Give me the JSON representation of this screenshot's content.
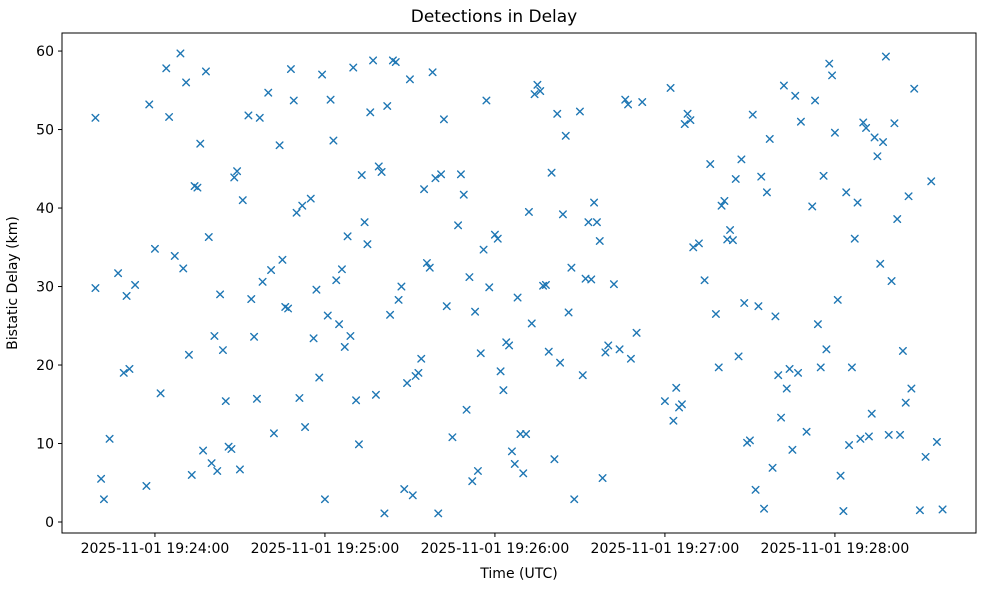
{
  "chart_data": {
    "type": "scatter",
    "title": "Detections in Delay",
    "xlabel": "Time (UTC)",
    "ylabel": "Bistatic Delay (km)",
    "marker": "x",
    "marker_color": "#1f77b4",
    "grid": false,
    "legend": "none",
    "x_unit": "seconds relative to 2025-11-01 19:24:00 UTC",
    "xlim_seconds": [
      -32.8,
      289.8
    ],
    "ylim": [
      -1.4,
      62.3
    ],
    "xticks": [
      {
        "t": 0,
        "label": "2025-11-01 19:24:00"
      },
      {
        "t": 60,
        "label": "2025-11-01 19:25:00"
      },
      {
        "t": 120,
        "label": "2025-11-01 19:26:00"
      },
      {
        "t": 180,
        "label": "2025-11-01 19:27:00"
      },
      {
        "t": 240,
        "label": "2025-11-01 19:28:00"
      }
    ],
    "yticks": [
      0,
      10,
      20,
      30,
      40,
      50,
      60
    ],
    "points": [
      [
        -21,
        51.5
      ],
      [
        -21,
        29.8
      ],
      [
        -19,
        5.5
      ],
      [
        -18,
        2.9
      ],
      [
        -16,
        10.6
      ],
      [
        -13,
        31.7
      ],
      [
        -11,
        19.0
      ],
      [
        -10,
        28.8
      ],
      [
        -9,
        19.5
      ],
      [
        -7,
        30.2
      ],
      [
        -3,
        4.6
      ],
      [
        -2,
        53.2
      ],
      [
        0,
        34.8
      ],
      [
        2,
        16.4
      ],
      [
        4,
        57.8
      ],
      [
        5,
        51.6
      ],
      [
        7,
        33.9
      ],
      [
        9,
        59.7
      ],
      [
        10,
        32.3
      ],
      [
        11,
        56.0
      ],
      [
        12,
        21.3
      ],
      [
        13,
        6.0
      ],
      [
        14,
        42.8
      ],
      [
        15,
        42.6
      ],
      [
        16,
        48.2
      ],
      [
        17,
        9.1
      ],
      [
        18,
        57.4
      ],
      [
        19,
        36.3
      ],
      [
        20,
        7.5
      ],
      [
        21,
        23.7
      ],
      [
        22,
        6.5
      ],
      [
        23,
        29.0
      ],
      [
        24,
        21.9
      ],
      [
        25,
        15.4
      ],
      [
        26,
        9.6
      ],
      [
        27,
        9.3
      ],
      [
        28,
        43.9
      ],
      [
        29,
        44.7
      ],
      [
        30,
        6.7
      ],
      [
        31,
        41.0
      ],
      [
        33,
        51.8
      ],
      [
        34,
        28.4
      ],
      [
        35,
        23.6
      ],
      [
        36,
        15.7
      ],
      [
        37,
        51.5
      ],
      [
        38,
        30.6
      ],
      [
        40,
        54.7
      ],
      [
        41,
        32.1
      ],
      [
        42,
        11.3
      ],
      [
        44,
        48.0
      ],
      [
        45,
        33.4
      ],
      [
        46,
        27.4
      ],
      [
        47,
        27.2
      ],
      [
        48,
        57.7
      ],
      [
        49,
        53.7
      ],
      [
        50,
        39.4
      ],
      [
        51,
        15.8
      ],
      [
        52,
        40.3
      ],
      [
        53,
        12.1
      ],
      [
        55,
        41.2
      ],
      [
        56,
        23.4
      ],
      [
        57,
        29.6
      ],
      [
        58,
        18.4
      ],
      [
        59,
        57.0
      ],
      [
        60,
        2.9
      ],
      [
        61,
        26.3
      ],
      [
        62,
        53.8
      ],
      [
        63,
        48.6
      ],
      [
        64,
        30.8
      ],
      [
        65,
        25.2
      ],
      [
        66,
        32.2
      ],
      [
        67,
        22.3
      ],
      [
        68,
        36.4
      ],
      [
        69,
        23.7
      ],
      [
        70,
        57.9
      ],
      [
        71,
        15.5
      ],
      [
        72,
        9.9
      ],
      [
        73,
        44.2
      ],
      [
        74,
        38.2
      ],
      [
        75,
        35.4
      ],
      [
        76,
        52.2
      ],
      [
        77,
        58.8
      ],
      [
        78,
        16.2
      ],
      [
        79,
        45.3
      ],
      [
        80,
        44.6
      ],
      [
        81,
        1.1
      ],
      [
        82,
        53.0
      ],
      [
        83,
        26.4
      ],
      [
        84,
        58.8
      ],
      [
        85,
        58.6
      ],
      [
        86,
        28.3
      ],
      [
        87,
        30.0
      ],
      [
        88,
        4.2
      ],
      [
        89,
        17.7
      ],
      [
        90,
        56.4
      ],
      [
        91,
        3.4
      ],
      [
        92,
        18.6
      ],
      [
        93,
        19.0
      ],
      [
        94,
        20.8
      ],
      [
        95,
        42.4
      ],
      [
        96,
        33.0
      ],
      [
        97,
        32.4
      ],
      [
        98,
        57.3
      ],
      [
        99,
        43.8
      ],
      [
        100,
        1.1
      ],
      [
        101,
        44.3
      ],
      [
        102,
        51.3
      ],
      [
        103,
        27.5
      ],
      [
        105,
        10.8
      ],
      [
        107,
        37.8
      ],
      [
        108,
        44.3
      ],
      [
        109,
        41.7
      ],
      [
        110,
        14.3
      ],
      [
        111,
        31.2
      ],
      [
        112,
        5.2
      ],
      [
        113,
        26.8
      ],
      [
        114,
        6.5
      ],
      [
        115,
        21.5
      ],
      [
        116,
        34.7
      ],
      [
        117,
        53.7
      ],
      [
        118,
        29.9
      ],
      [
        120,
        36.6
      ],
      [
        121,
        36.1
      ],
      [
        122,
        19.2
      ],
      [
        123,
        16.8
      ],
      [
        124,
        22.9
      ],
      [
        125,
        22.5
      ],
      [
        126,
        9.0
      ],
      [
        127,
        7.4
      ],
      [
        128,
        28.6
      ],
      [
        129,
        11.2
      ],
      [
        130,
        6.2
      ],
      [
        131,
        11.2
      ],
      [
        132,
        39.5
      ],
      [
        133,
        25.3
      ],
      [
        134,
        54.5
      ],
      [
        135,
        55.7
      ],
      [
        136,
        54.9
      ],
      [
        137,
        30.1
      ],
      [
        138,
        30.2
      ],
      [
        139,
        21.7
      ],
      [
        140,
        44.5
      ],
      [
        141,
        8.0
      ],
      [
        142,
        52.0
      ],
      [
        143,
        20.3
      ],
      [
        144,
        39.2
      ],
      [
        145,
        49.2
      ],
      [
        146,
        26.7
      ],
      [
        147,
        32.4
      ],
      [
        148,
        2.9
      ],
      [
        150,
        52.3
      ],
      [
        151,
        18.7
      ],
      [
        152,
        31.0
      ],
      [
        153,
        38.2
      ],
      [
        154,
        30.9
      ],
      [
        155,
        40.7
      ],
      [
        156,
        38.2
      ],
      [
        157,
        35.8
      ],
      [
        158,
        5.6
      ],
      [
        159,
        21.6
      ],
      [
        160,
        22.5
      ],
      [
        162,
        30.3
      ],
      [
        164,
        22.0
      ],
      [
        166,
        53.8
      ],
      [
        167,
        53.2
      ],
      [
        168,
        20.8
      ],
      [
        170,
        24.1
      ],
      [
        172,
        53.5
      ],
      [
        180,
        15.4
      ],
      [
        182,
        55.3
      ],
      [
        183,
        12.9
      ],
      [
        184,
        17.1
      ],
      [
        185,
        14.6
      ],
      [
        186,
        15.0
      ],
      [
        187,
        50.7
      ],
      [
        188,
        52.0
      ],
      [
        189,
        51.2
      ],
      [
        190,
        35.0
      ],
      [
        192,
        35.5
      ],
      [
        194,
        30.8
      ],
      [
        196,
        45.6
      ],
      [
        198,
        26.5
      ],
      [
        199,
        19.7
      ],
      [
        200,
        40.3
      ],
      [
        201,
        40.9
      ],
      [
        202,
        36.0
      ],
      [
        203,
        37.2
      ],
      [
        204,
        35.9
      ],
      [
        205,
        43.7
      ],
      [
        206,
        21.1
      ],
      [
        207,
        46.2
      ],
      [
        208,
        27.9
      ],
      [
        209,
        10.1
      ],
      [
        210,
        10.4
      ],
      [
        211,
        51.9
      ],
      [
        212,
        4.1
      ],
      [
        213,
        27.5
      ],
      [
        214,
        44.0
      ],
      [
        215,
        1.7
      ],
      [
        216,
        42.0
      ],
      [
        217,
        48.8
      ],
      [
        218,
        6.9
      ],
      [
        219,
        26.2
      ],
      [
        220,
        18.7
      ],
      [
        221,
        13.3
      ],
      [
        222,
        55.6
      ],
      [
        223,
        17.0
      ],
      [
        224,
        19.5
      ],
      [
        225,
        9.2
      ],
      [
        226,
        54.3
      ],
      [
        227,
        19.0
      ],
      [
        228,
        51.0
      ],
      [
        230,
        11.5
      ],
      [
        232,
        40.2
      ],
      [
        233,
        53.7
      ],
      [
        234,
        25.2
      ],
      [
        235,
        19.7
      ],
      [
        236,
        44.1
      ],
      [
        237,
        22.0
      ],
      [
        238,
        58.4
      ],
      [
        239,
        56.9
      ],
      [
        240,
        49.6
      ],
      [
        241,
        28.3
      ],
      [
        242,
        5.9
      ],
      [
        243,
        1.4
      ],
      [
        244,
        42.0
      ],
      [
        245,
        9.8
      ],
      [
        246,
        19.7
      ],
      [
        247,
        36.1
      ],
      [
        248,
        40.7
      ],
      [
        249,
        10.6
      ],
      [
        250,
        50.9
      ],
      [
        251,
        50.2
      ],
      [
        252,
        10.9
      ],
      [
        253,
        13.8
      ],
      [
        254,
        49.0
      ],
      [
        255,
        46.6
      ],
      [
        256,
        32.9
      ],
      [
        257,
        48.4
      ],
      [
        258,
        59.3
      ],
      [
        259,
        11.1
      ],
      [
        260,
        30.7
      ],
      [
        261,
        50.8
      ],
      [
        262,
        38.6
      ],
      [
        263,
        11.1
      ],
      [
        264,
        21.8
      ],
      [
        265,
        15.2
      ],
      [
        266,
        41.5
      ],
      [
        267,
        17.0
      ],
      [
        268,
        55.2
      ],
      [
        270,
        1.5
      ],
      [
        272,
        8.3
      ],
      [
        274,
        43.4
      ],
      [
        276,
        10.2
      ],
      [
        278,
        1.6
      ]
    ]
  }
}
